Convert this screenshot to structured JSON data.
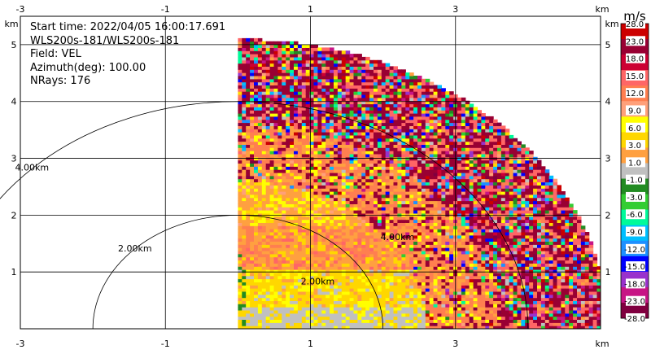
{
  "info": {
    "start_time": "Start time: 2022/04/05 16:00:17.691",
    "site": "WLS200s-181/WLS200s-181",
    "field": "Field: VEL",
    "azimuth": "Azimuth(deg): 100.00",
    "nrays": "NRays: 176"
  },
  "chart_data": {
    "type": "heatmap",
    "description_kind": "PPI radial velocity sector",
    "x_unit": "km",
    "y_unit": "km",
    "xlim": [
      -3.0,
      5.0
    ],
    "ylim": [
      0.0,
      5.5
    ],
    "x_ticks": [
      "-3",
      "-1",
      "1",
      "3"
    ],
    "x_tick_values": [
      -3,
      -1,
      1,
      3
    ],
    "y_ticks": [
      "1",
      "2",
      "3",
      "4",
      "5"
    ],
    "y_tick_values": [
      1,
      2,
      3,
      4,
      5
    ],
    "axis_unit_label": "km",
    "range_rings": [
      {
        "radius_km": 2.0,
        "label": "2.00km"
      },
      {
        "radius_km": 4.0,
        "label": "4.00km"
      }
    ],
    "secondary_ring_labels": [
      {
        "label": "2.00km"
      },
      {
        "label": "4.00km"
      }
    ],
    "grid": true,
    "sector": {
      "center_x_km": 0.0,
      "center_y_km": 0.0,
      "max_range_km": 5.1
    },
    "colorbar": {
      "title": "m/s",
      "labels": [
        "28.0",
        "23.0",
        "18.0",
        "15.0",
        "12.0",
        "9.0",
        "6.0",
        "3.0",
        "1.0",
        "-1.0",
        "-3.0",
        "-6.0",
        "-9.0",
        "-12.0",
        "-15.0",
        "-18.0",
        "-23.0",
        "-28.0"
      ],
      "colors": [
        "#cc0000",
        "#990033",
        "#cc0033",
        "#ff6666",
        "#ff7f50",
        "#ffa07a",
        "#ffff00",
        "#ffd700",
        "#ffa040",
        "#c0c0c0",
        "#228b22",
        "#32cd32",
        "#00fa9a",
        "#00bfff",
        "#1e90ff",
        "#0000ff",
        "#9932cc",
        "#c71585",
        "#800040"
      ]
    }
  }
}
